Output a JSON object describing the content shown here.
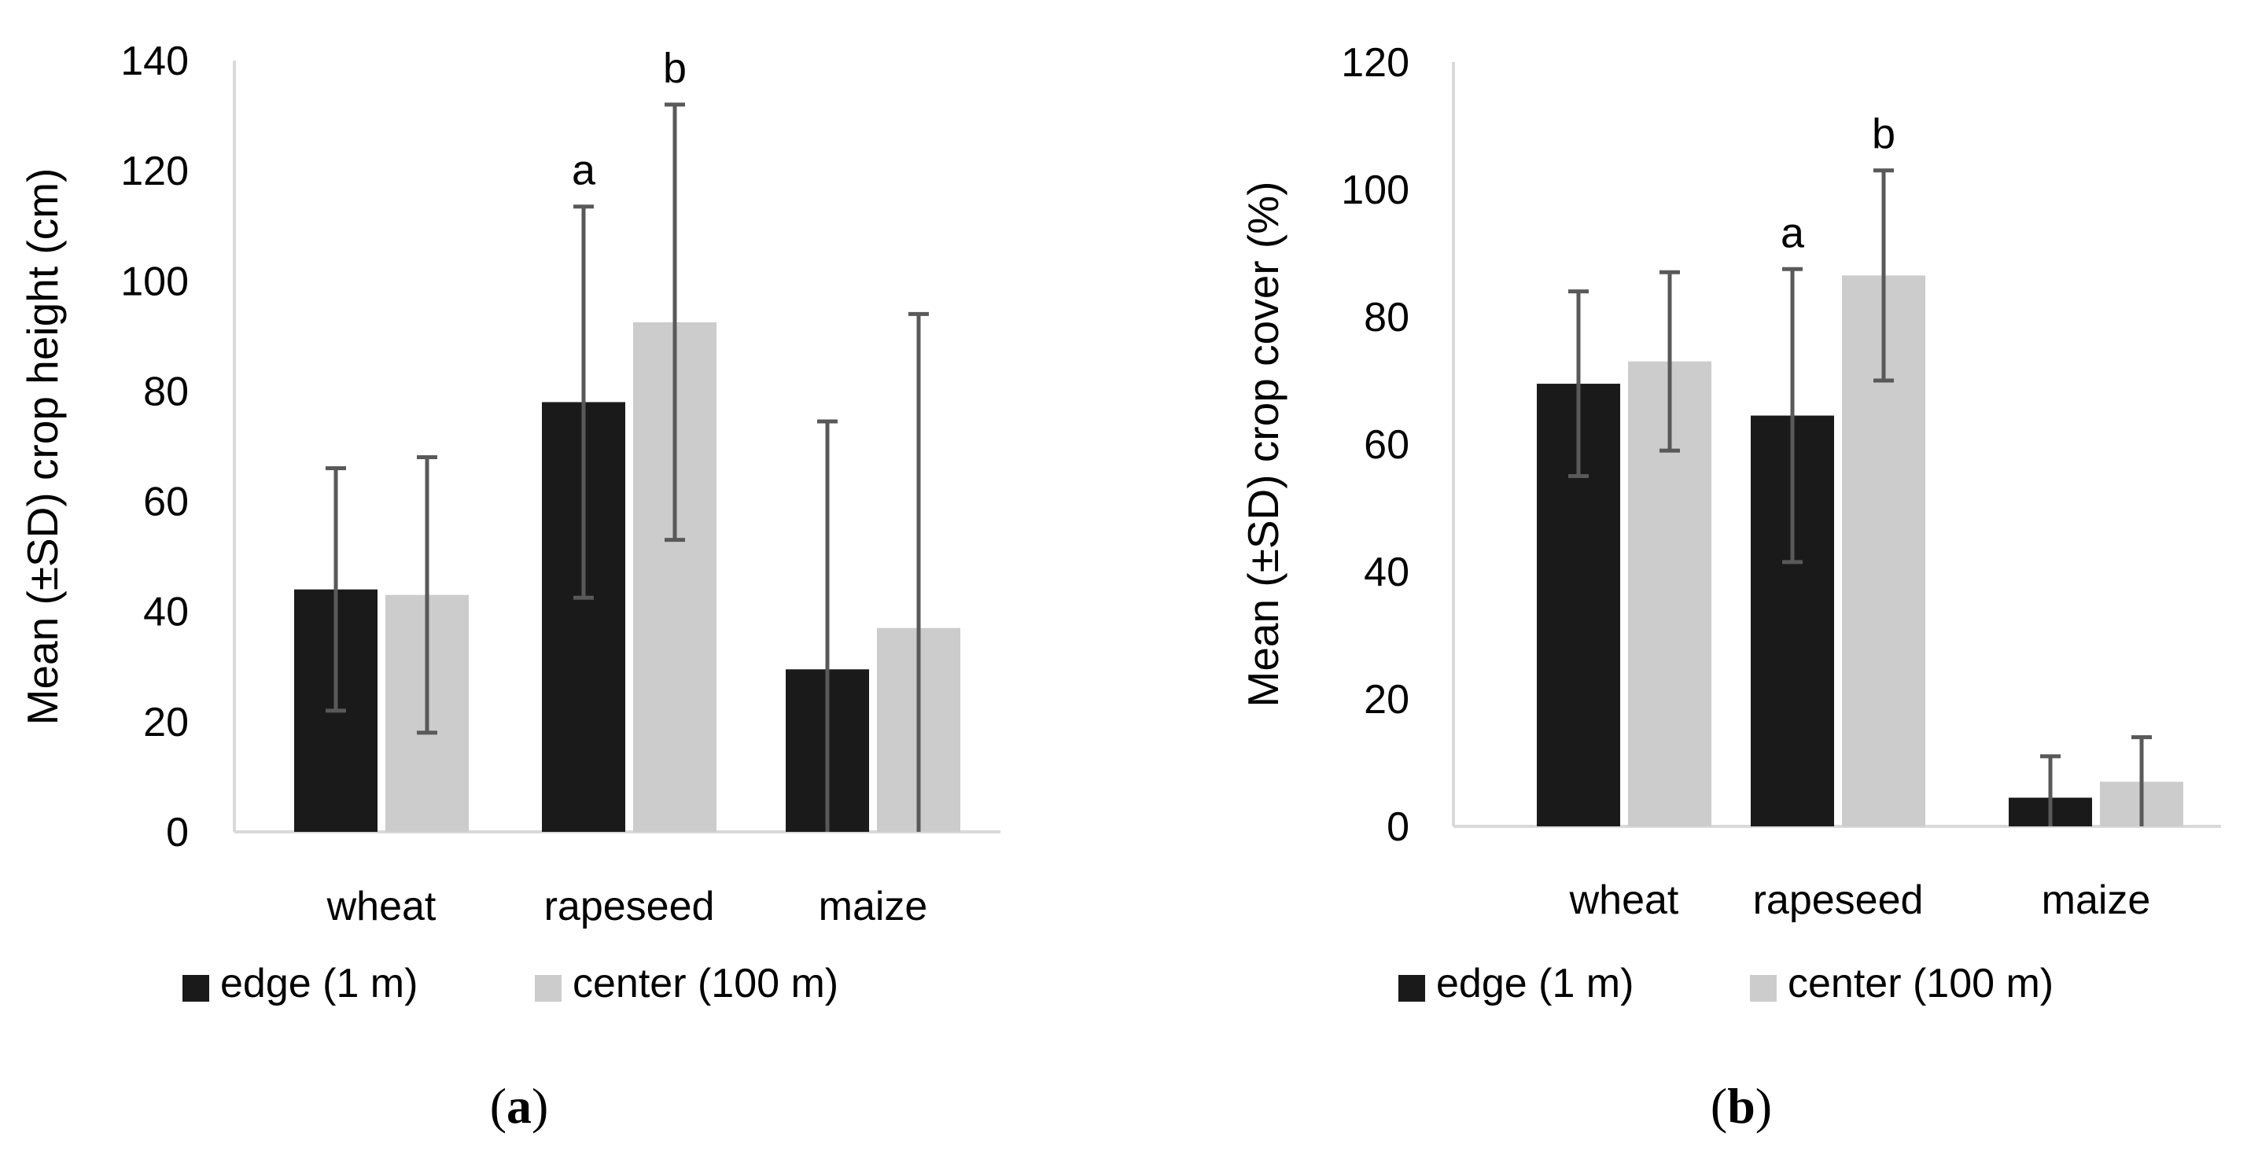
{
  "colors": {
    "edge": "#1a1a1a",
    "center": "#cccccc",
    "error_bar": "#595959",
    "axis": "#d9d9d9"
  },
  "chart_data": [
    {
      "type": "bar",
      "panel_label": "a",
      "title": "",
      "xlabel": "",
      "ylabel": "Mean (±SD) crop height (cm)",
      "ylim": [
        0,
        140
      ],
      "yticks": [
        "0",
        "20",
        "40",
        "60",
        "80",
        "100",
        "120",
        "140"
      ],
      "categories": [
        "wheat",
        "rapeseed",
        "maize"
      ],
      "series": [
        {
          "name": "edge (1 m)",
          "values": [
            44,
            78,
            29.5
          ],
          "errors": [
            22,
            35.5,
            45
          ],
          "significance": [
            "",
            "a",
            ""
          ]
        },
        {
          "name": "center (100 m)",
          "values": [
            43,
            92.5,
            37
          ],
          "errors": [
            25,
            39.5,
            57
          ],
          "significance": [
            "",
            "b",
            ""
          ]
        }
      ],
      "legend": "bottom"
    },
    {
      "type": "bar",
      "panel_label": "b",
      "title": "",
      "xlabel": "",
      "ylabel": "Mean (±SD) crop cover (%)",
      "ylim": [
        0,
        120
      ],
      "yticks": [
        "0",
        "20",
        "40",
        "60",
        "80",
        "100",
        "120"
      ],
      "categories": [
        "wheat",
        "rapeseed",
        "maize"
      ],
      "series": [
        {
          "name": "edge (1 m)",
          "values": [
            69.5,
            64.5,
            4.5
          ],
          "errors": [
            14.5,
            23,
            6.5
          ],
          "significance": [
            "",
            "a",
            ""
          ]
        },
        {
          "name": "center (100 m)",
          "values": [
            73,
            86.5,
            7
          ],
          "errors": [
            14,
            16.5,
            7
          ],
          "significance": [
            "",
            "b",
            ""
          ]
        }
      ],
      "legend": "bottom"
    }
  ]
}
